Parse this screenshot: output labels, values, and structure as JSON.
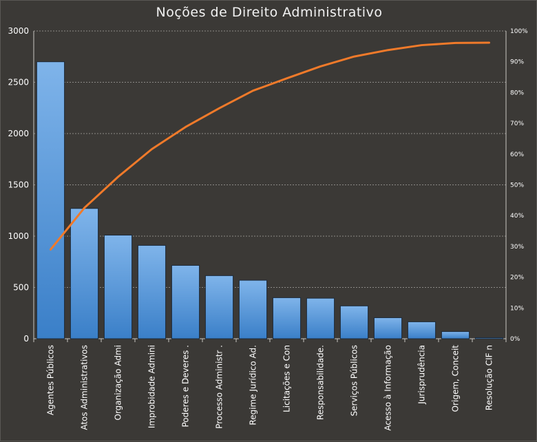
{
  "chart_data": {
    "type": "bar",
    "title": "Noções de Direito Administrativo",
    "categories": [
      "Agentes Públicos",
      "Atos Administrativos",
      "Organização Admi",
      "Improbidade  Admini",
      "Poderes e Deveres .",
      "Processo Administr .",
      "Regime Jurídico Ad.",
      "Licitações e Con",
      "Responsabilidade.",
      "Serviços Públicos",
      "Acesso à Informação",
      "Jurisprudência",
      "Origem, Conceit",
      "Resolução CIF n"
    ],
    "series": [
      {
        "type": "bar",
        "values": [
          2700,
          1270,
          1010,
          910,
          715,
          615,
          570,
          400,
          395,
          320,
          205,
          165,
          70,
          10
        ],
        "color": "#4f94d6"
      },
      {
        "type": "line",
        "axis": "right",
        "values": [
          29,
          42.5,
          52.6,
          61.6,
          68.8,
          74.9,
          80.6,
          84.6,
          88.5,
          91.7,
          93.8,
          95.4,
          96.1,
          96.2
        ],
        "color": "#f07a2a"
      }
    ],
    "ylim": [
      0,
      3000
    ],
    "yticks": [
      0,
      500,
      1000,
      1500,
      2000,
      2500,
      3000
    ],
    "y2lim": [
      0,
      100
    ],
    "y2ticks": [
      "0%",
      "10%",
      "20%",
      "30%",
      "40%",
      "50%",
      "60%",
      "70%",
      "80%",
      "90%",
      "100%"
    ],
    "grid": true,
    "legend": "none"
  }
}
